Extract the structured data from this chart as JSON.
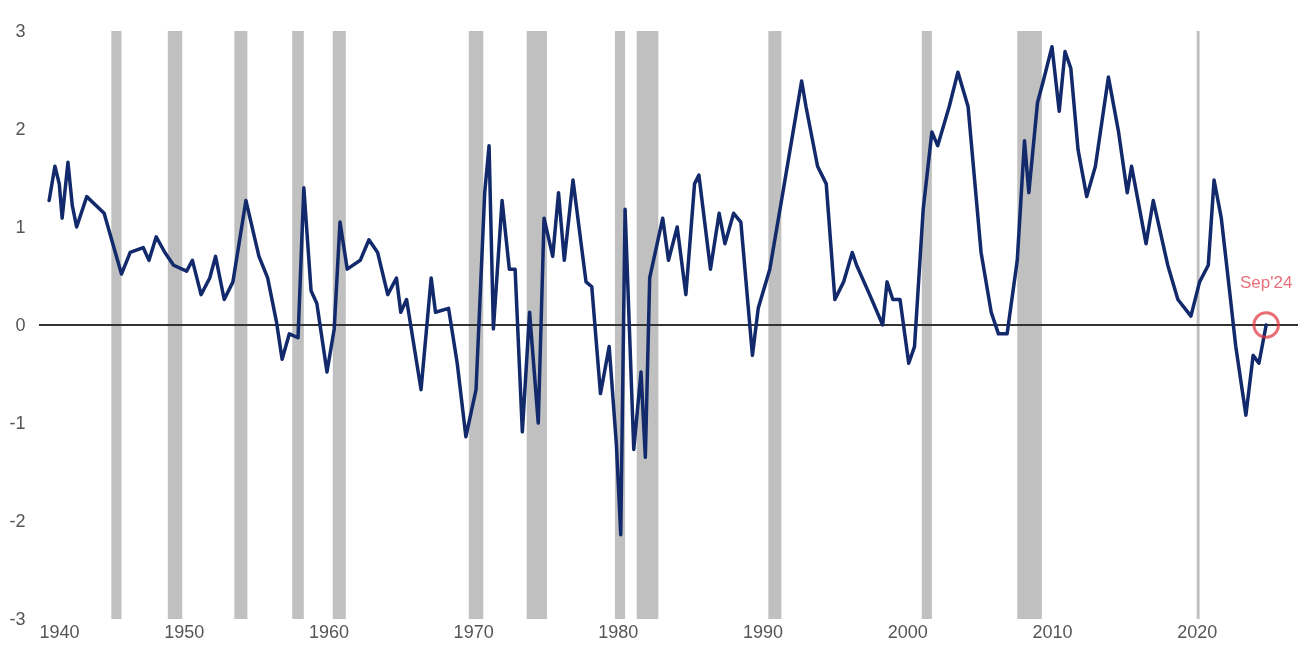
{
  "chart_data": {
    "type": "line",
    "x": [
      1940.7,
      1941.1,
      1941.4,
      1941.6,
      1942.0,
      1942.3,
      1942.6,
      1943.3,
      1944.5,
      1945.1,
      1945.7,
      1946.3,
      1947.2,
      1947.6,
      1948.1,
      1948.7,
      1949.3,
      1950.2,
      1950.6,
      1951.2,
      1951.8,
      1952.2,
      1952.8,
      1953.4,
      1954.3,
      1955.2,
      1955.8,
      1956.4,
      1956.8,
      1957.3,
      1957.9,
      1958.3,
      1958.8,
      1959.2,
      1959.9,
      1960.4,
      1960.8,
      1961.3,
      1962.2,
      1962.8,
      1963.4,
      1964.1,
      1964.7,
      1965.0,
      1965.4,
      1966.4,
      1967.1,
      1967.4,
      1968.3,
      1968.9,
      1969.5,
      1970.2,
      1970.8,
      1971.1,
      1971.4,
      1972.0,
      1972.5,
      1972.9,
      1973.4,
      1973.9,
      1974.5,
      1974.9,
      1975.5,
      1975.9,
      1976.3,
      1976.9,
      1977.8,
      1978.2,
      1978.8,
      1979.4,
      1979.9,
      1980.2,
      1980.5,
      1981.1,
      1981.6,
      1981.9,
      1982.2,
      1983.1,
      1983.5,
      1984.1,
      1984.7,
      1985.3,
      1985.6,
      1986.4,
      1987.0,
      1987.4,
      1988.0,
      1988.5,
      1989.3,
      1989.7,
      1990.5,
      1991.4,
      1992.2,
      1992.7,
      1993.0,
      1993.8,
      1994.4,
      1995.0,
      1995.6,
      1996.2,
      1996.5,
      1997.4,
      1998.3,
      1998.6,
      1999.0,
      1999.5,
      2000.1,
      2000.5,
      2001.1,
      2001.7,
      2002.1,
      2002.9,
      2003.5,
      2004.2,
      2005.1,
      2005.8,
      2006.3,
      2006.9,
      2007.6,
      2008.1,
      2008.4,
      2009.0,
      2009.4,
      2010.0,
      2010.5,
      2010.9,
      2011.3,
      2011.8,
      2012.4,
      2013.0,
      2013.9,
      2014.6,
      2015.2,
      2015.5,
      2016.5,
      2017.0,
      2018.0,
      2018.7,
      2019.6,
      2020.2,
      2020.8,
      2021.2,
      2021.7,
      2022.3,
      2022.7,
      2023.4,
      2023.9,
      2024.3,
      2024.8
    ],
    "series": [
      {
        "color": "#12296b",
        "values": [
          1.27,
          1.62,
          1.44,
          1.09,
          1.66,
          1.22,
          1.0,
          1.31,
          1.14,
          0.83,
          0.52,
          0.74,
          0.79,
          0.66,
          0.9,
          0.74,
          0.61,
          0.55,
          0.66,
          0.31,
          0.48,
          0.7,
          0.26,
          0.44,
          1.27,
          0.7,
          0.48,
          0.04,
          -0.35,
          -0.09,
          -0.13,
          1.4,
          0.35,
          0.22,
          -0.48,
          -0.04,
          1.05,
          0.57,
          0.66,
          0.87,
          0.74,
          0.31,
          0.48,
          0.13,
          0.26,
          -0.66,
          0.48,
          0.13,
          0.17,
          -0.39,
          -1.14,
          -0.66,
          1.35,
          1.83,
          -0.04,
          1.27,
          0.57,
          0.57,
          -1.09,
          0.13,
          -1.0,
          1.09,
          0.7,
          1.35,
          0.66,
          1.48,
          0.44,
          0.39,
          -0.7,
          -0.22,
          -1.22,
          -2.14,
          1.18,
          -1.27,
          -0.48,
          -1.35,
          0.48,
          1.09,
          0.66,
          1.0,
          0.31,
          1.44,
          1.53,
          0.57,
          1.14,
          0.83,
          1.14,
          1.05,
          -0.31,
          0.17,
          0.57,
          1.35,
          2.05,
          2.49,
          2.23,
          1.62,
          1.44,
          0.26,
          0.44,
          0.74,
          0.61,
          0.31,
          0.0,
          0.44,
          0.26,
          0.26,
          -0.39,
          -0.22,
          1.18,
          1.97,
          1.83,
          2.23,
          2.58,
          2.23,
          0.74,
          0.13,
          -0.09,
          -0.09,
          0.66,
          1.88,
          1.35,
          2.27,
          2.49,
          2.84,
          2.18,
          2.79,
          2.62,
          1.79,
          1.31,
          1.62,
          2.53,
          1.97,
          1.35,
          1.62,
          0.83,
          1.27,
          0.61,
          0.26,
          0.09,
          0.44,
          0.61,
          1.48,
          1.09,
          0.31,
          -0.22,
          -0.92,
          -0.31,
          -0.39,
          0.0
        ]
      }
    ],
    "xlim": [
      1940,
      2027
    ],
    "xticks": [
      1940,
      1950,
      1960,
      1970,
      1980,
      1990,
      2000,
      2010,
      2020
    ],
    "ylim": [
      -3,
      3
    ],
    "yticks": [
      -3,
      -2,
      -1,
      0,
      1,
      2,
      3
    ],
    "grid": false,
    "line_style": "solid",
    "marker": "none",
    "ref_lines": [
      {
        "axis": "y",
        "value": 0,
        "color": "#333333",
        "line_style": "solid"
      }
    ],
    "bands": [
      {
        "axis": "x",
        "from": 1945.0,
        "to": 1945.7,
        "color": "#c0c0c0"
      },
      {
        "axis": "x",
        "from": 1948.9,
        "to": 1949.9,
        "color": "#c0c0c0"
      },
      {
        "axis": "x",
        "from": 1953.5,
        "to": 1954.4,
        "color": "#c0c0c0"
      },
      {
        "axis": "x",
        "from": 1957.5,
        "to": 1958.3,
        "color": "#c0c0c0"
      },
      {
        "axis": "x",
        "from": 1960.3,
        "to": 1961.2,
        "color": "#c0c0c0"
      },
      {
        "axis": "x",
        "from": 1969.7,
        "to": 1970.7,
        "color": "#c0c0c0"
      },
      {
        "axis": "x",
        "from": 1973.7,
        "to": 1975.1,
        "color": "#c0c0c0"
      },
      {
        "axis": "x",
        "from": 1979.8,
        "to": 1980.5,
        "color": "#c0c0c0"
      },
      {
        "axis": "x",
        "from": 1981.3,
        "to": 1982.8,
        "color": "#c0c0c0"
      },
      {
        "axis": "x",
        "from": 1990.4,
        "to": 1991.3,
        "color": "#c0c0c0"
      },
      {
        "axis": "x",
        "from": 2001.0,
        "to": 2001.7,
        "color": "#c0c0c0"
      },
      {
        "axis": "x",
        "from": 2007.6,
        "to": 2009.3,
        "color": "#c0c0c0"
      },
      {
        "axis": "x",
        "from": 2020.0,
        "to": 2020.2,
        "color": "#c0c0c0"
      }
    ],
    "annotations": [
      {
        "text": "Sep'24",
        "x": 2024.8,
        "y": 0.0
      }
    ]
  }
}
